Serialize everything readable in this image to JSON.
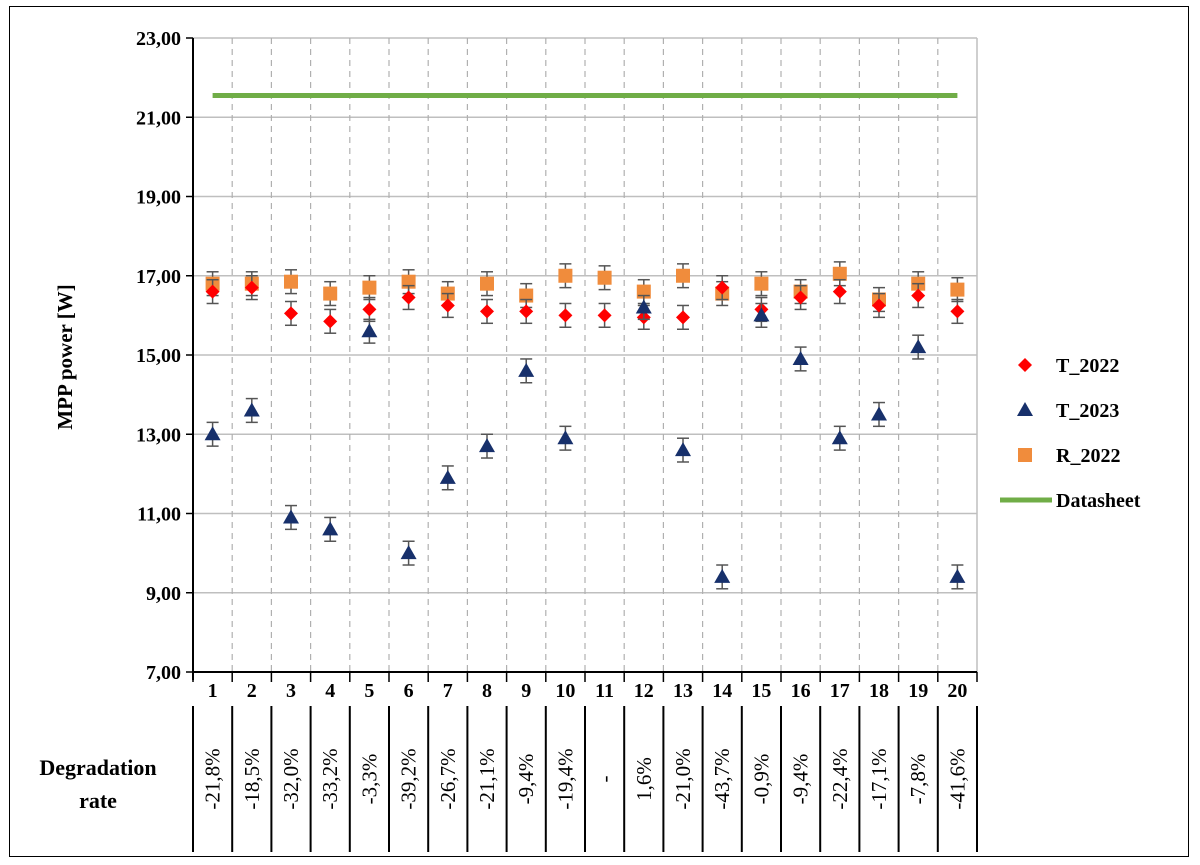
{
  "chart_data": {
    "type": "scatter",
    "ylabel": "MPP power [W]",
    "ylim": [
      7,
      23
    ],
    "yticks": [
      "7,00",
      "9,00",
      "11,00",
      "13,00",
      "15,00",
      "17,00",
      "19,00",
      "21,00",
      "23,00"
    ],
    "categories": [
      "1",
      "2",
      "3",
      "4",
      "5",
      "6",
      "7",
      "8",
      "9",
      "10",
      "11",
      "12",
      "13",
      "14",
      "15",
      "16",
      "17",
      "18",
      "19",
      "20"
    ],
    "grid": true,
    "legend_position": "right",
    "series": [
      {
        "name": "T_2022",
        "marker": "diamond",
        "color": "#ff0000",
        "values": [
          16.6,
          16.7,
          16.05,
          15.85,
          16.15,
          16.45,
          16.25,
          16.1,
          16.1,
          16.0,
          16.0,
          15.95,
          15.95,
          16.7,
          16.15,
          16.45,
          16.6,
          16.25,
          16.5,
          16.1
        ]
      },
      {
        "name": "T_2023",
        "marker": "triangle",
        "color": "#17306b",
        "values": [
          13.0,
          13.6,
          10.9,
          10.6,
          15.6,
          10.0,
          11.9,
          12.7,
          14.6,
          12.9,
          null,
          16.2,
          12.6,
          9.4,
          16.0,
          14.9,
          12.9,
          13.5,
          15.2,
          9.4
        ]
      },
      {
        "name": "R_2022",
        "marker": "square",
        "color": "#f08c3c",
        "values": [
          16.8,
          16.8,
          16.85,
          16.55,
          16.7,
          16.85,
          16.55,
          16.8,
          16.5,
          17.0,
          16.95,
          16.6,
          17.0,
          16.55,
          16.8,
          16.6,
          17.05,
          16.4,
          16.8,
          16.65
        ]
      },
      {
        "name": "Datasheet",
        "marker": "line",
        "color": "#70ad47",
        "value": 21.55
      }
    ],
    "error_bar": 0.3,
    "row_label": "Degradation rate",
    "degradation_rates": [
      "-21,8%",
      "-18,5%",
      "-32,0%",
      "-33,2%",
      "-3,3%",
      "-39,2%",
      "-26,7%",
      "-21,1%",
      "-9,4%",
      "-19,4%",
      "-",
      "1,6%",
      "-21,0%",
      "-43,7%",
      "-0,9%",
      "-9,4%",
      "-22,4%",
      "-17,1%",
      "-7,8%",
      "-41,6%"
    ]
  }
}
